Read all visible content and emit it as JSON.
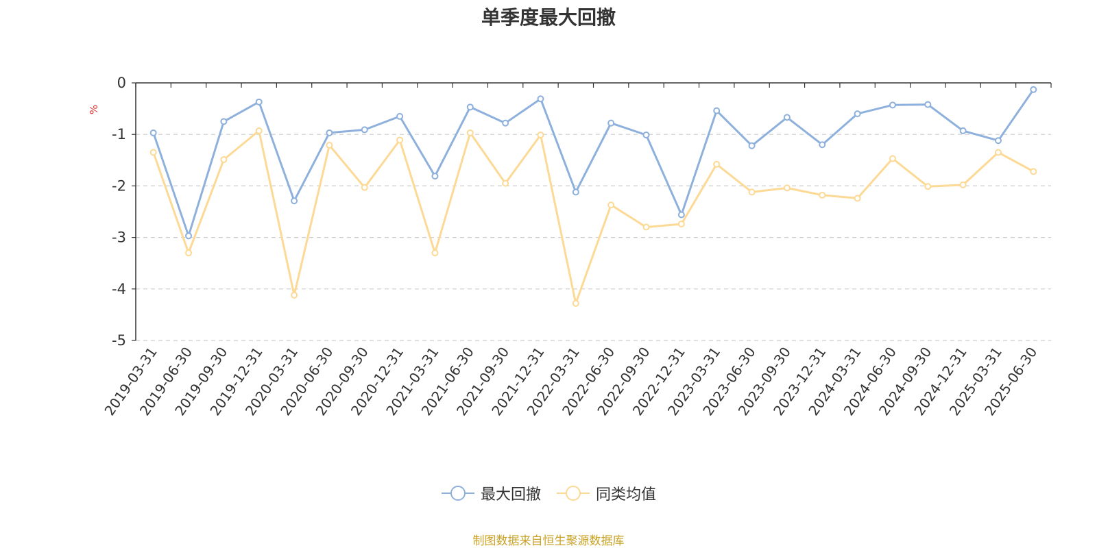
{
  "chart_data": {
    "type": "line",
    "title": "单季度最大回撤",
    "ylabel": "%",
    "xlabel": "",
    "ylim": [
      -5,
      0
    ],
    "yticks": [
      0,
      -1,
      -2,
      -3,
      -4,
      -5
    ],
    "grid": "horizontal dashed",
    "legend_position": "bottom",
    "categories": [
      "2019-03-31",
      "2019-06-30",
      "2019-09-30",
      "2019-12-31",
      "2020-03-31",
      "2020-06-30",
      "2020-09-30",
      "2020-12-31",
      "2021-03-31",
      "2021-06-30",
      "2021-09-30",
      "2021-12-31",
      "2022-03-31",
      "2022-06-30",
      "2022-09-30",
      "2022-12-31",
      "2023-03-31",
      "2023-06-30",
      "2023-09-30",
      "2023-12-31",
      "2024-03-31",
      "2024-06-30",
      "2024-09-30",
      "2024-12-31",
      "2025-03-31",
      "2025-06-30"
    ],
    "series": [
      {
        "name": "最大回撤",
        "color": "#8eb0dc",
        "values": [
          -0.97,
          -2.97,
          -0.75,
          -0.37,
          -2.29,
          -0.97,
          -0.91,
          -0.65,
          -1.81,
          -0.47,
          -0.78,
          -0.31,
          -2.12,
          -0.78,
          -1.01,
          -2.56,
          -0.54,
          -1.22,
          -0.67,
          -1.2,
          -0.6,
          -0.43,
          -0.42,
          -0.93,
          -1.12,
          -0.13
        ]
      },
      {
        "name": "同类均值",
        "color": "#fcd995",
        "values": [
          -1.35,
          -3.3,
          -1.49,
          -0.93,
          -4.12,
          -1.21,
          -2.03,
          -1.11,
          -3.3,
          -0.97,
          -1.95,
          -1.01,
          -4.28,
          -2.37,
          -2.8,
          -2.74,
          -1.58,
          -2.12,
          -2.04,
          -2.18,
          -2.24,
          -1.47,
          -2.01,
          -1.98,
          -1.35,
          -1.72
        ]
      }
    ]
  },
  "legend": {
    "items": [
      {
        "label": "最大回撤",
        "color": "#8eb0dc"
      },
      {
        "label": "同类均值",
        "color": "#fcd995"
      }
    ]
  },
  "footer": {
    "source": "制图数据来自恒生聚源数据库"
  }
}
